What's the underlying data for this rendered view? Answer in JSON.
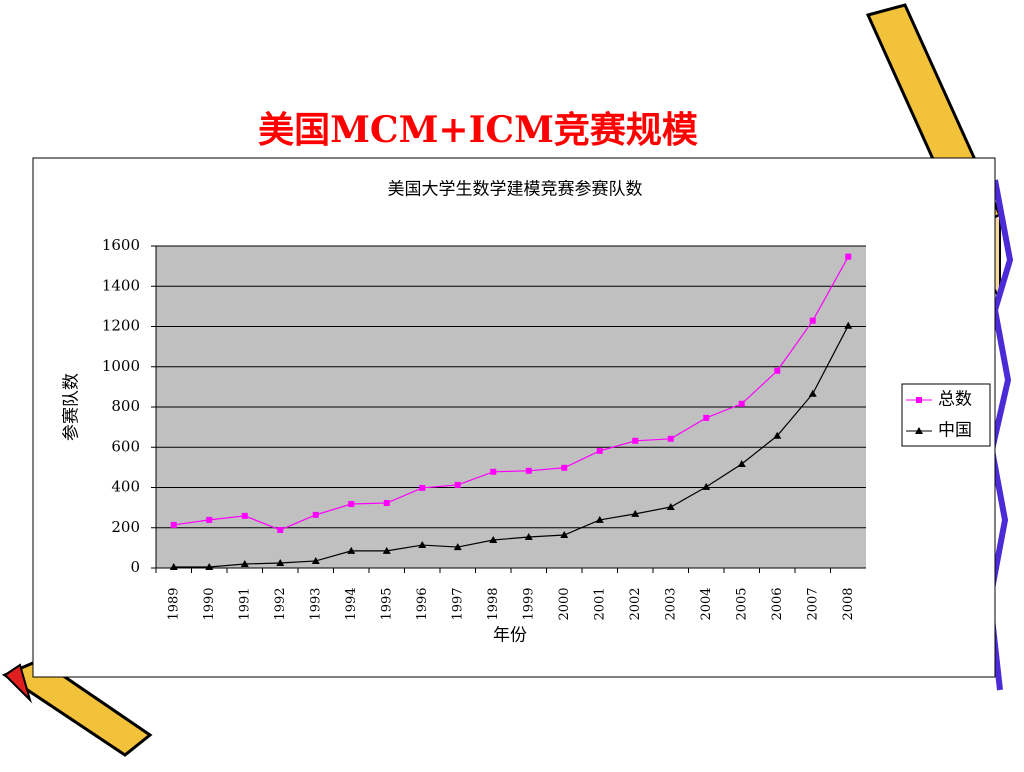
{
  "slide_title": "美国MCM+ICM竞赛规模",
  "chart_data": {
    "type": "line",
    "title": "美国大学生数学建模竞赛参赛队数",
    "xlabel": "年份",
    "ylabel": "参赛队数",
    "categories": [
      "1989",
      "1990",
      "1991",
      "1992",
      "1993",
      "1994",
      "1995",
      "1996",
      "1997",
      "1998",
      "1999",
      "2000",
      "2001",
      "2002",
      "2003",
      "2004",
      "2005",
      "2006",
      "2007",
      "2008"
    ],
    "series": [
      {
        "name": "总数",
        "color": "#ff00ff",
        "marker": "square",
        "values": [
          214,
          239,
          259,
          189,
          264,
          318,
          323,
          398,
          413,
          478,
          483,
          498,
          582,
          632,
          642,
          746,
          816,
          980,
          1229,
          1547
        ]
      },
      {
        "name": "中国",
        "color": "#000000",
        "marker": "triangle",
        "values": [
          5,
          5,
          20,
          25,
          35,
          85,
          85,
          114,
          104,
          139,
          154,
          164,
          239,
          269,
          303,
          403,
          517,
          657,
          866,
          1204
        ]
      }
    ],
    "ylim": [
      0,
      1600
    ],
    "yticks": [
      0,
      200,
      400,
      600,
      800,
      1000,
      1200,
      1400,
      1600
    ],
    "grid": true,
    "legend": "right"
  }
}
